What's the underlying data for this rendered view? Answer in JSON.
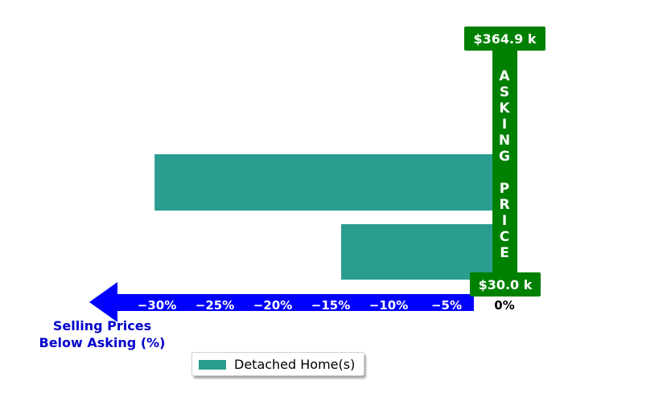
{
  "chart_data": {
    "type": "bar",
    "orientation": "horizontal",
    "categories": [
      "",
      ""
    ],
    "series": [
      {
        "name": "Detached Home(s)",
        "values": [
          -30.2,
          -14.1
        ]
      }
    ],
    "xlim": [
      -33,
      1.5
    ],
    "xticks": [
      {
        "value": -30,
        "label": "−30%"
      },
      {
        "value": -25,
        "label": "−25%"
      },
      {
        "value": -20,
        "label": "−20%"
      },
      {
        "value": -15,
        "label": "−15%"
      },
      {
        "value": -10,
        "label": "−10%"
      },
      {
        "value": -5,
        "label": "−5%"
      },
      {
        "value": 0,
        "label": "0%"
      }
    ],
    "xlabel": "Selling Prices\nBelow Asking (%)",
    "asking_label": "ASKING PRICE",
    "top_price_label": "$364.9 k",
    "bottom_price_label": "$30.0 k",
    "legend_position": "bottom-center",
    "grid": false
  },
  "colors": {
    "bar": "#2a9d8f",
    "arrow": "#0000ff",
    "asking": "#008000",
    "xlabel": "#0000cc"
  }
}
